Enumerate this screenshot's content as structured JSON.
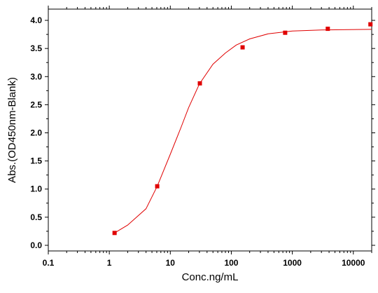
{
  "chart_data": {
    "type": "scatter",
    "title": "",
    "xlabel": "Conc.ng/mL",
    "ylabel": "Abs.(OD450nm-Blank)",
    "x_scale": "log",
    "xlim": [
      0.1,
      20000
    ],
    "ylim": [
      -0.1,
      4.2
    ],
    "x_ticks": [
      {
        "value": 0.1,
        "label": "0.1"
      },
      {
        "value": 1,
        "label": "1"
      },
      {
        "value": 10,
        "label": "10"
      },
      {
        "value": 100,
        "label": "100"
      },
      {
        "value": 1000,
        "label": "1000"
      },
      {
        "value": 10000,
        "label": "10000"
      }
    ],
    "y_ticks": [
      {
        "value": 0.0,
        "label": "0.0"
      },
      {
        "value": 0.5,
        "label": "0.5"
      },
      {
        "value": 1.0,
        "label": "1.0"
      },
      {
        "value": 1.5,
        "label": "1.5"
      },
      {
        "value": 2.0,
        "label": "2.0"
      },
      {
        "value": 2.5,
        "label": "2.5"
      },
      {
        "value": 3.0,
        "label": "3.0"
      },
      {
        "value": 3.5,
        "label": "3.5"
      },
      {
        "value": 4.0,
        "label": "4.0"
      }
    ],
    "grid": false,
    "series": [
      {
        "marker_color": "#e00000",
        "marker": "square",
        "points": [
          {
            "x": 1.22,
            "y": 0.22
          },
          {
            "x": 6.1,
            "y": 1.05
          },
          {
            "x": 30.5,
            "y": 2.88
          },
          {
            "x": 153,
            "y": 3.52
          },
          {
            "x": 763,
            "y": 3.78
          },
          {
            "x": 3815,
            "y": 3.85
          },
          {
            "x": 19073,
            "y": 3.93
          }
        ]
      }
    ],
    "fit": {
      "color": "#e00000",
      "points": [
        {
          "x": 1.22,
          "y": 0.22
        },
        {
          "x": 2,
          "y": 0.36
        },
        {
          "x": 4,
          "y": 0.65
        },
        {
          "x": 6.1,
          "y": 1.05
        },
        {
          "x": 10,
          "y": 1.62
        },
        {
          "x": 15,
          "y": 2.1
        },
        {
          "x": 20,
          "y": 2.45
        },
        {
          "x": 30,
          "y": 2.87
        },
        {
          "x": 50,
          "y": 3.22
        },
        {
          "x": 80,
          "y": 3.42
        },
        {
          "x": 120,
          "y": 3.56
        },
        {
          "x": 200,
          "y": 3.67
        },
        {
          "x": 400,
          "y": 3.76
        },
        {
          "x": 1000,
          "y": 3.81
        },
        {
          "x": 3000,
          "y": 3.83
        },
        {
          "x": 20000,
          "y": 3.84
        }
      ]
    }
  }
}
